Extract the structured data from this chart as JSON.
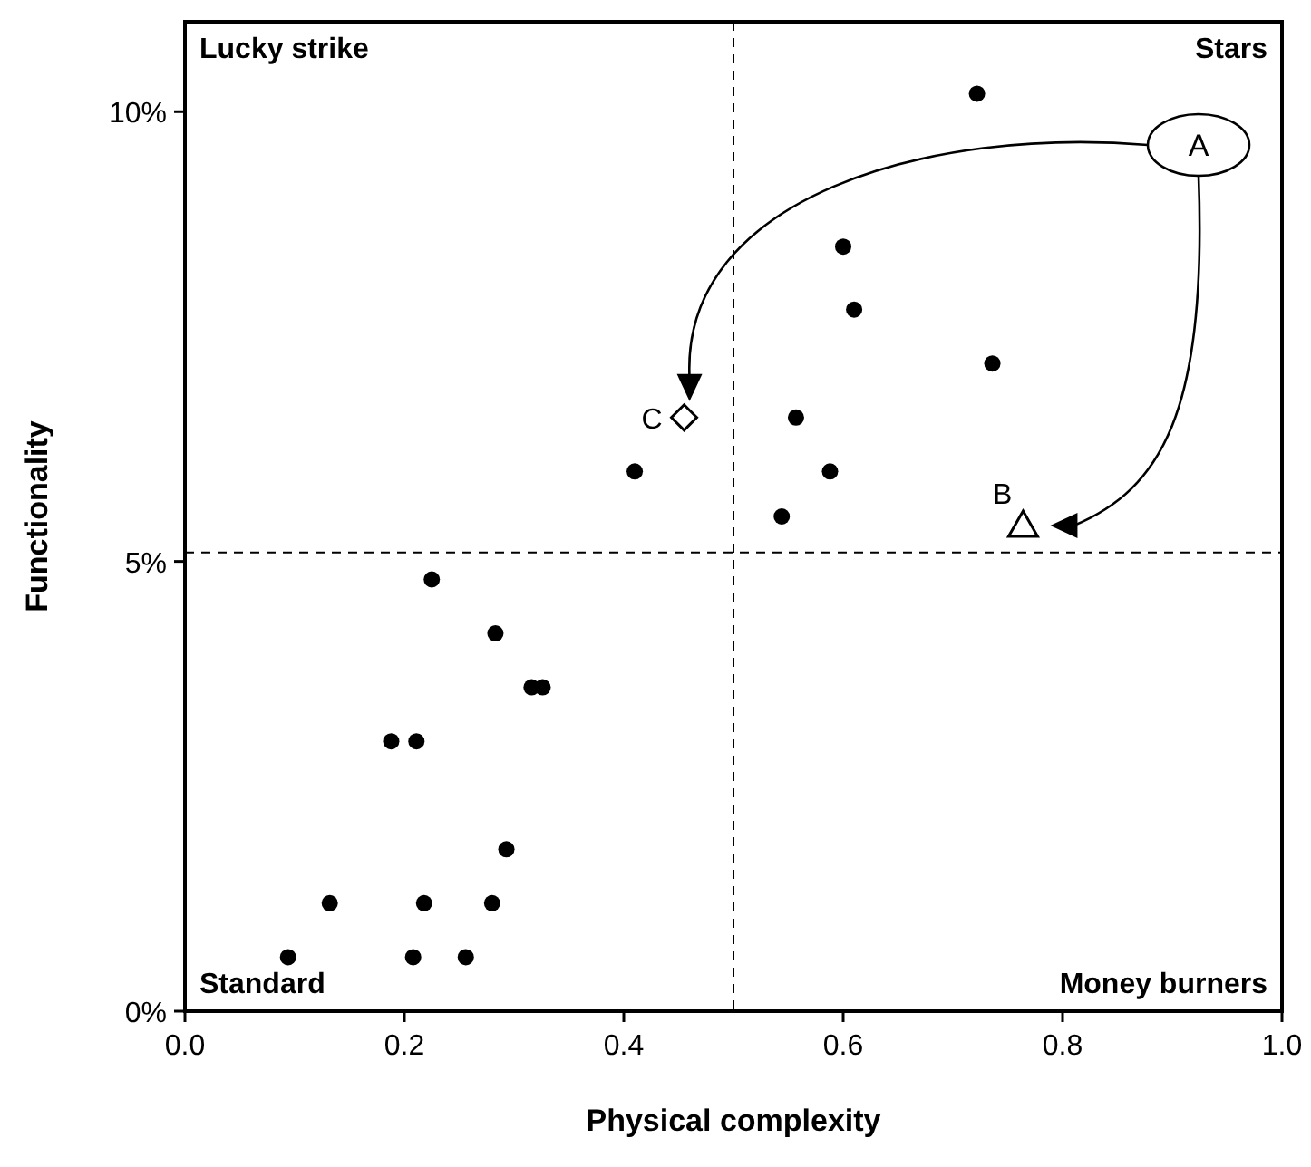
{
  "chart_data": {
    "type": "scatter",
    "xlabel": "Physical complexity",
    "ylabel": "Functionality",
    "xlim": [
      0,
      1
    ],
    "ylim": [
      0,
      11
    ],
    "xticks": [
      {
        "value": 0,
        "label": "0.0"
      },
      {
        "value": 0.2,
        "label": "0.2"
      },
      {
        "value": 0.4,
        "label": "0.4"
      },
      {
        "value": 0.6,
        "label": "0.6"
      },
      {
        "value": 0.8,
        "label": "0.8"
      },
      {
        "value": 1,
        "label": "1.0"
      }
    ],
    "yticks": [
      {
        "value": 0,
        "label": "0%"
      },
      {
        "value": 5,
        "label": "5%"
      },
      {
        "value": 10,
        "label": "10%"
      }
    ],
    "grid": false,
    "series": [
      {
        "color": "#000000",
        "marker": "circle",
        "x": [
          0.722,
          0.6,
          0.61,
          0.736,
          0.557,
          0.588,
          0.544,
          0.41,
          0.225,
          0.283,
          0.316,
          0.326,
          0.188,
          0.211,
          0.293,
          0.132,
          0.218,
          0.28,
          0.094,
          0.208,
          0.256
        ],
        "values": [
          10.2,
          8.5,
          7.8,
          7.2,
          6.6,
          6.0,
          5.5,
          6.0,
          4.8,
          4.2,
          3.6,
          3.6,
          3.0,
          3.0,
          1.8,
          1.2,
          1.2,
          1.2,
          0.6,
          0.6,
          0.6
        ]
      },
      {
        "color": "#000000",
        "marker": "triangle",
        "x": [
          0.764
        ],
        "values": [
          5.4
        ]
      },
      {
        "color": "#000000",
        "marker": "diamond",
        "x": [
          0.455
        ],
        "values": [
          6.6
        ]
      }
    ],
    "ref_lines": [
      {
        "axis": "x",
        "value": 0.5,
        "line_style": "dashed"
      },
      {
        "axis": "y",
        "value": 5.1,
        "line_style": "dashed"
      }
    ],
    "annotations": [
      "Lucky strike",
      "Stars",
      "Standard",
      "Money burners",
      "A",
      {
        "text": "B",
        "x": 0.764,
        "y": 5.4
      },
      {
        "text": "C",
        "x": 0.455,
        "y": 6.6
      }
    ]
  }
}
